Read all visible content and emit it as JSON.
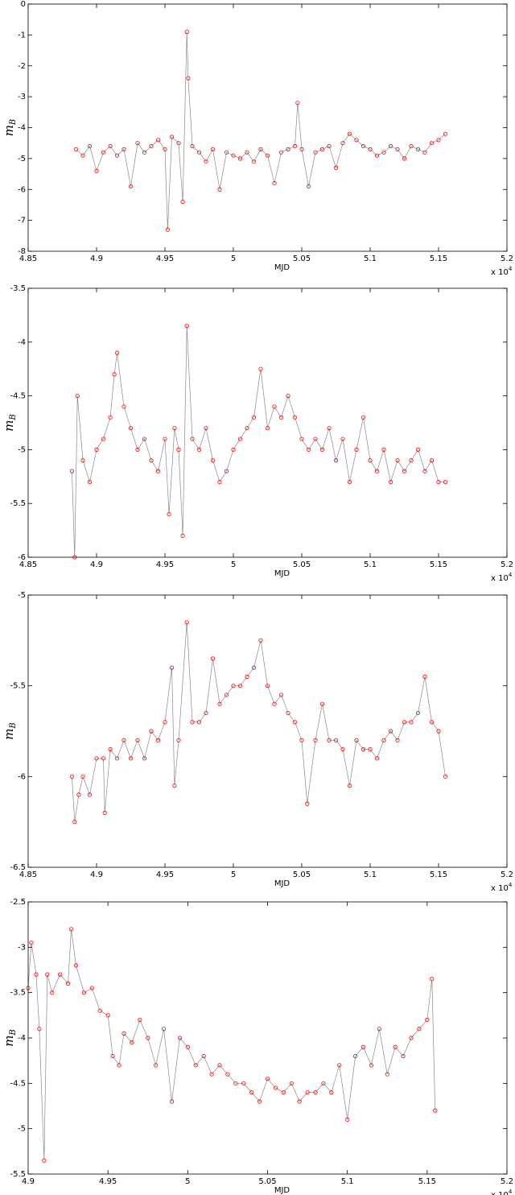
{
  "chart_data": [
    {
      "type": "line",
      "xlabel": "MJD",
      "ylabel": "m",
      "ylabel_sub": "B",
      "x_multiplier": "x 10",
      "x_multiplier_exp": "4",
      "marker_color": "#ff0000",
      "line_color": "#8a8a8a",
      "xlim": [
        4.85,
        5.2
      ],
      "xticks": [
        4.85,
        4.9,
        4.95,
        5,
        5.05,
        5.1,
        5.15,
        5.2
      ],
      "ylim": [
        -8,
        0
      ],
      "yticks": [
        -8,
        -7,
        -6,
        -5,
        -4,
        -3,
        -2,
        -1,
        0
      ],
      "x": [
        4.885,
        4.89,
        4.895,
        4.9,
        4.905,
        4.91,
        4.915,
        4.92,
        4.925,
        4.93,
        4.935,
        4.94,
        4.945,
        4.95,
        4.952,
        4.955,
        4.96,
        4.963,
        4.966,
        4.967,
        4.97,
        4.975,
        4.98,
        4.985,
        4.99,
        4.995,
        5.0,
        5.005,
        5.01,
        5.015,
        5.02,
        5.025,
        5.03,
        5.035,
        5.04,
        5.045,
        5.047,
        5.05,
        5.055,
        5.06,
        5.065,
        5.07,
        5.075,
        5.08,
        5.085,
        5.09,
        5.095,
        5.1,
        5.105,
        5.11,
        5.115,
        5.12,
        5.125,
        5.13,
        5.135,
        5.14,
        5.145,
        5.15,
        5.155
      ],
      "values": [
        -4.7,
        -4.9,
        -4.6,
        -5.4,
        -4.8,
        -4.6,
        -4.9,
        -4.7,
        -5.9,
        -4.5,
        -4.8,
        -4.6,
        -4.4,
        -4.7,
        -7.3,
        -4.3,
        -4.5,
        -6.4,
        -0.9,
        -2.4,
        -4.6,
        -4.8,
        -5.1,
        -4.7,
        -6.0,
        -4.8,
        -4.9,
        -5.0,
        -4.8,
        -5.1,
        -4.7,
        -4.9,
        -5.8,
        -4.8,
        -4.7,
        -4.6,
        -3.2,
        -4.7,
        -5.9,
        -4.8,
        -4.7,
        -4.6,
        -5.3,
        -4.5,
        -4.2,
        -4.4,
        -4.6,
        -4.7,
        -4.9,
        -4.8,
        -4.6,
        -4.7,
        -5.0,
        -4.6,
        -4.7,
        -4.8,
        -4.5,
        -4.4,
        -4.2
      ]
    },
    {
      "type": "line",
      "xlabel": "MJD",
      "ylabel": "m",
      "ylabel_sub": "B",
      "x_multiplier": "x 10",
      "x_multiplier_exp": "4",
      "marker_color": "#ff0000",
      "line_color": "#8a8a8a",
      "xlim": [
        4.85,
        5.2
      ],
      "xticks": [
        4.85,
        4.9,
        4.95,
        5,
        5.05,
        5.1,
        5.15,
        5.2
      ],
      "ylim": [
        -6,
        -3.5
      ],
      "yticks": [
        -6,
        -5.5,
        -5,
        -4.5,
        -4,
        -3.5
      ],
      "x": [
        4.882,
        4.884,
        4.886,
        4.89,
        4.895,
        4.9,
        4.905,
        4.91,
        4.913,
        4.915,
        4.92,
        4.925,
        4.93,
        4.935,
        4.94,
        4.945,
        4.95,
        4.953,
        4.957,
        4.96,
        4.963,
        4.966,
        4.97,
        4.975,
        4.98,
        4.985,
        4.99,
        4.995,
        5.0,
        5.005,
        5.01,
        5.015,
        5.02,
        5.025,
        5.03,
        5.035,
        5.04,
        5.045,
        5.05,
        5.055,
        5.06,
        5.065,
        5.07,
        5.075,
        5.08,
        5.085,
        5.09,
        5.095,
        5.1,
        5.105,
        5.11,
        5.115,
        5.12,
        5.125,
        5.13,
        5.135,
        5.14,
        5.145,
        5.15,
        5.155
      ],
      "values": [
        -5.2,
        -6.0,
        -4.5,
        -5.1,
        -5.3,
        -5.0,
        -4.9,
        -4.7,
        -4.3,
        -4.1,
        -4.6,
        -4.8,
        -5.0,
        -4.9,
        -5.1,
        -5.2,
        -4.9,
        -5.6,
        -4.8,
        -5.0,
        -5.8,
        -3.85,
        -4.9,
        -5.0,
        -4.8,
        -5.1,
        -5.3,
        -5.2,
        -5.0,
        -4.9,
        -4.8,
        -4.7,
        -4.25,
        -4.8,
        -4.6,
        -4.7,
        -4.5,
        -4.7,
        -4.9,
        -5.0,
        -4.9,
        -5.0,
        -4.8,
        -5.1,
        -4.9,
        -5.3,
        -5.0,
        -4.7,
        -5.1,
        -5.2,
        -5.0,
        -5.3,
        -5.1,
        -5.2,
        -5.1,
        -5.0,
        -5.2,
        -5.1,
        -5.3,
        -5.3
      ]
    },
    {
      "type": "line",
      "xlabel": "MJD",
      "ylabel": "m",
      "ylabel_sub": "B",
      "x_multiplier": "x 10",
      "x_multiplier_exp": "4",
      "marker_color": "#ff0000",
      "line_color": "#8a8a8a",
      "xlim": [
        4.85,
        5.2
      ],
      "xticks": [
        4.85,
        4.9,
        4.95,
        5,
        5.05,
        5.1,
        5.15,
        5.2
      ],
      "ylim": [
        -6.5,
        -5
      ],
      "yticks": [
        -6.5,
        -6,
        -5.5,
        -5
      ],
      "x": [
        4.882,
        4.884,
        4.887,
        4.89,
        4.895,
        4.9,
        4.905,
        4.906,
        4.91,
        4.915,
        4.92,
        4.925,
        4.93,
        4.935,
        4.94,
        4.945,
        4.95,
        4.955,
        4.957,
        4.96,
        4.966,
        4.97,
        4.975,
        4.98,
        4.985,
        4.99,
        4.995,
        5.0,
        5.005,
        5.01,
        5.015,
        5.02,
        5.025,
        5.03,
        5.035,
        5.04,
        5.045,
        5.05,
        5.054,
        5.06,
        5.065,
        5.07,
        5.075,
        5.08,
        5.085,
        5.09,
        5.095,
        5.1,
        5.105,
        5.11,
        5.115,
        5.12,
        5.125,
        5.13,
        5.135,
        5.14,
        5.145,
        5.15,
        5.155
      ],
      "values": [
        -6.0,
        -6.25,
        -6.1,
        -6.0,
        -6.1,
        -5.9,
        -5.9,
        -6.2,
        -5.85,
        -5.9,
        -5.8,
        -5.9,
        -5.8,
        -5.9,
        -5.75,
        -5.8,
        -5.7,
        -5.4,
        -6.05,
        -5.8,
        -5.15,
        -5.7,
        -5.7,
        -5.65,
        -5.35,
        -5.6,
        -5.55,
        -5.5,
        -5.5,
        -5.45,
        -5.4,
        -5.25,
        -5.5,
        -5.6,
        -5.55,
        -5.65,
        -5.7,
        -5.8,
        -6.15,
        -5.8,
        -5.6,
        -5.8,
        -5.8,
        -5.85,
        -6.05,
        -5.8,
        -5.85,
        -5.85,
        -5.9,
        -5.8,
        -5.75,
        -5.8,
        -5.7,
        -5.7,
        -5.65,
        -5.45,
        -5.7,
        -5.75,
        -6.0
      ]
    },
    {
      "type": "line",
      "xlabel": "MJD",
      "ylabel": "m",
      "ylabel_sub": "B",
      "x_multiplier": "x 10",
      "x_multiplier_exp": "4",
      "marker_color": "#ff0000",
      "line_color": "#8a8a8a",
      "xlim": [
        4.9,
        5.2
      ],
      "xticks": [
        4.9,
        4.95,
        5,
        5.05,
        5.1,
        5.15,
        5.2
      ],
      "ylim": [
        -5.5,
        -2.5
      ],
      "yticks": [
        -5.5,
        -5,
        -4.5,
        -4,
        -3.5,
        -3,
        -2.5
      ],
      "x": [
        4.9,
        4.902,
        4.905,
        4.907,
        4.91,
        4.912,
        4.915,
        4.92,
        4.925,
        4.927,
        4.93,
        4.935,
        4.94,
        4.945,
        4.95,
        4.953,
        4.957,
        4.96,
        4.965,
        4.97,
        4.975,
        4.98,
        4.985,
        4.99,
        4.995,
        5.0,
        5.005,
        5.01,
        5.015,
        5.02,
        5.025,
        5.03,
        5.035,
        5.04,
        5.045,
        5.05,
        5.055,
        5.06,
        5.065,
        5.07,
        5.075,
        5.08,
        5.085,
        5.09,
        5.095,
        5.1,
        5.105,
        5.11,
        5.115,
        5.12,
        5.125,
        5.13,
        5.135,
        5.14,
        5.145,
        5.15,
        5.153,
        5.155
      ],
      "values": [
        -3.45,
        -2.95,
        -3.3,
        -3.9,
        -5.35,
        -3.3,
        -3.5,
        -3.3,
        -3.4,
        -2.8,
        -3.2,
        -3.5,
        -3.45,
        -3.7,
        -3.75,
        -4.2,
        -4.3,
        -3.95,
        -4.05,
        -3.8,
        -4.0,
        -4.3,
        -3.9,
        -4.7,
        -4.0,
        -4.1,
        -4.3,
        -4.2,
        -4.4,
        -4.3,
        -4.4,
        -4.5,
        -4.5,
        -4.6,
        -4.7,
        -4.45,
        -4.55,
        -4.6,
        -4.5,
        -4.7,
        -4.6,
        -4.6,
        -4.5,
        -4.6,
        -4.3,
        -4.9,
        -4.2,
        -4.1,
        -4.3,
        -3.9,
        -4.4,
        -4.1,
        -4.2,
        -4.0,
        -3.9,
        -3.8,
        -3.35,
        -4.8
      ]
    }
  ]
}
